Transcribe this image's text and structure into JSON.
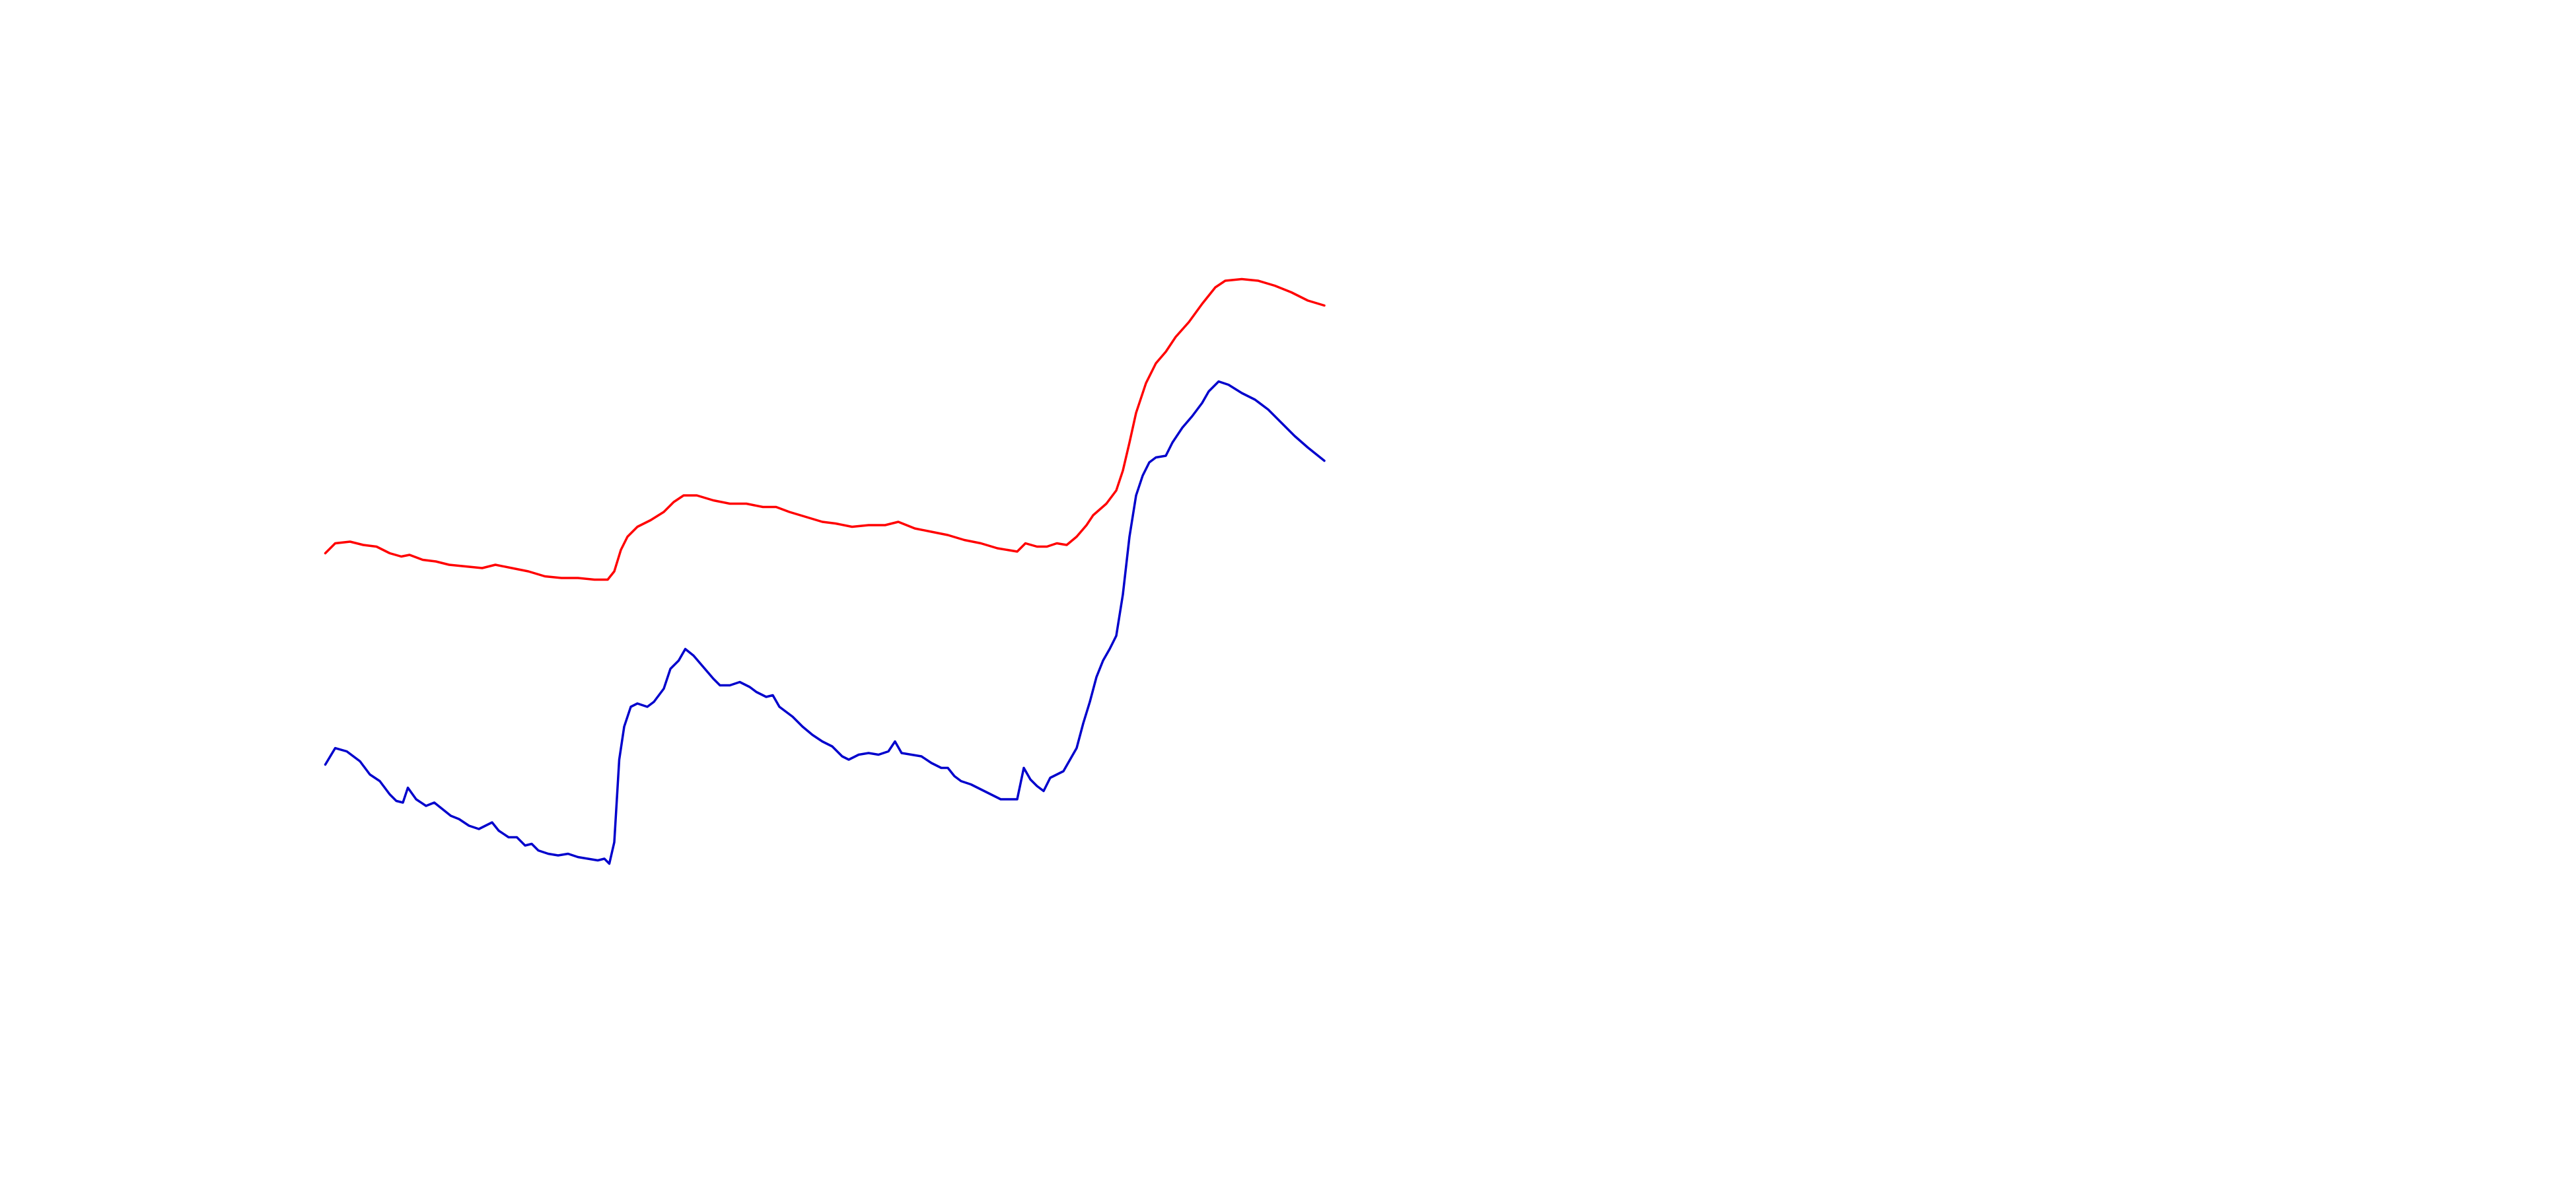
{
  "chart_data": {
    "type": "line",
    "xlim": [
      0,
      1560
    ],
    "ylim": [
      0,
      720
    ],
    "series": [
      {
        "color": "#ff0000",
        "x": [
          197,
          203,
          212,
          220,
          228,
          236,
          243,
          248,
          256,
          264,
          272,
          282,
          292,
          300,
          310,
          320,
          330,
          340,
          350,
          360,
          368,
          372,
          376,
          380,
          386,
          394,
          402,
          408,
          414,
          422,
          432,
          442,
          452,
          462,
          470,
          478,
          488,
          498,
          506,
          516,
          526,
          536,
          544,
          554,
          564,
          574,
          584,
          594,
          604,
          616,
          621,
          628,
          634,
          640,
          646,
          652,
          658,
          662,
          670,
          676,
          680,
          684,
          688,
          694,
          700,
          706,
          712,
          720,
          728,
          736,
          742,
          752,
          762,
          772,
          782,
          792,
          802
        ],
        "values": [
          385,
          391,
          392,
          390,
          389,
          385,
          383,
          384,
          381,
          380,
          378,
          377,
          376,
          378,
          376,
          374,
          371,
          370,
          370,
          369,
          369,
          374,
          387,
          395,
          401,
          405,
          410,
          416,
          420,
          420,
          417,
          415,
          415,
          413,
          413,
          410,
          407,
          404,
          403,
          401,
          402,
          402,
          404,
          400,
          398,
          396,
          393,
          391,
          388,
          386,
          391,
          389,
          389,
          391,
          390,
          395,
          402,
          408,
          415,
          423,
          435,
          452,
          470,
          488,
          500,
          507,
          516,
          525,
          536,
          546,
          550,
          551,
          550,
          547,
          543,
          538,
          535
        ]
      },
      {
        "color": "#0000cc",
        "x": [
          197,
          203,
          210,
          218,
          224,
          230,
          236,
          240,
          244,
          247,
          252,
          258,
          263,
          268,
          273,
          278,
          284,
          290,
          294,
          298,
          302,
          308,
          313,
          318,
          322,
          326,
          332,
          338,
          344,
          350,
          356,
          362,
          366,
          369,
          372,
          375,
          378,
          382,
          386,
          392,
          396,
          402,
          406,
          411,
          415,
          420,
          426,
          432,
          436,
          442,
          448,
          454,
          458,
          464,
          468,
          472,
          480,
          486,
          492,
          498,
          504,
          510,
          514,
          520,
          526,
          532,
          538,
          542,
          546,
          552,
          558,
          564,
          570,
          574,
          578,
          582,
          588,
          594,
          600,
          606,
          610,
          616,
          620,
          624,
          628,
          632,
          636,
          640,
          644,
          648,
          652,
          656,
          660,
          664,
          668,
          672,
          676,
          680,
          684,
          688,
          692,
          696,
          700,
          706,
          710,
          716,
          722,
          728,
          732,
          738,
          744,
          752,
          760,
          768,
          776,
          784,
          792,
          802
        ],
        "values": [
          257,
          267,
          265,
          259,
          251,
          247,
          239,
          235,
          234,
          243,
          236,
          232,
          234,
          230,
          226,
          224,
          220,
          218,
          220,
          222,
          217,
          213,
          213,
          208,
          209,
          205,
          203,
          202,
          203,
          201,
          200,
          199,
          200,
          197,
          210,
          260,
          280,
          292,
          294,
          292,
          295,
          303,
          315,
          320,
          327,
          323,
          316,
          309,
          305,
          305,
          307,
          304,
          301,
          298,
          299,
          292,
          286,
          280,
          275,
          271,
          268,
          262,
          260,
          263,
          264,
          263,
          265,
          271,
          264,
          263,
          262,
          258,
          255,
          255,
          250,
          247,
          245,
          242,
          239,
          236,
          236,
          236,
          255,
          248,
          244,
          241,
          249,
          251,
          253,
          260,
          267,
          282,
          295,
          310,
          320,
          327,
          335,
          360,
          395,
          420,
          432,
          440,
          443,
          444,
          452,
          461,
          468,
          476,
          483,
          489,
          487,
          482,
          478,
          472,
          464,
          456,
          449,
          441
        ]
      }
    ]
  }
}
